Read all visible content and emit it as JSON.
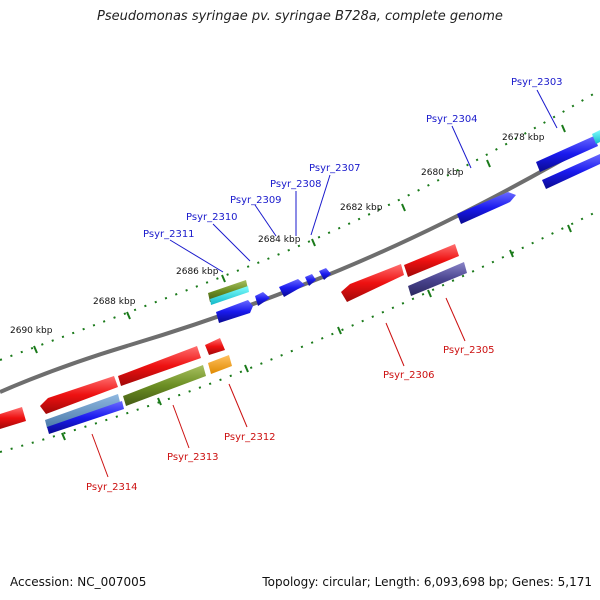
{
  "title": "Pseudomonas syringae pv. syringae B728a, complete genome",
  "footer": {
    "accession": "Accession: NC_007005",
    "summary": "Topology: circular; Length: 6,093,698 bp; Genes: 5,171"
  },
  "colors": {
    "forward_label": "#1a1acc",
    "reverse_label": "#cc1111",
    "backbone": "#808080",
    "tick": "#1a7a1a",
    "forward_gene": "#1a1aee",
    "reverse_gene": "#ee1111"
  },
  "scale_labels": [
    "2678 kbp",
    "2680 kbp",
    "2682 kbp",
    "2684 kbp",
    "2686 kbp",
    "2688 kbp",
    "2690 kbp"
  ],
  "forward_genes": [
    "Psyr_2303",
    "Psyr_2304",
    "Psyr_2307",
    "Psyr_2308",
    "Psyr_2309",
    "Psyr_2310",
    "Psyr_2311"
  ],
  "reverse_genes": [
    "Psyr_2305",
    "Psyr_2306",
    "Psyr_2312",
    "Psyr_2313",
    "Psyr_2314"
  ]
}
